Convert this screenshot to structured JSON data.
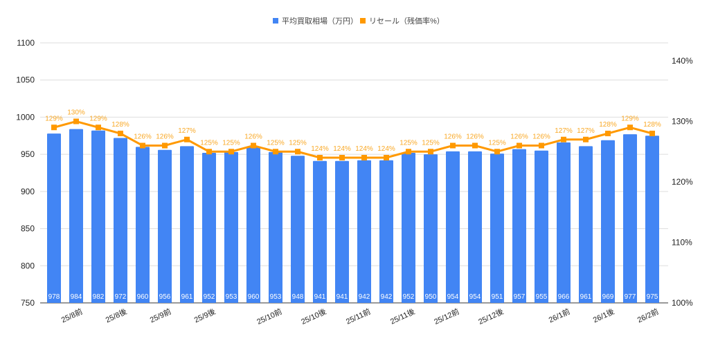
{
  "chart_data": {
    "type": "bar+line",
    "legend_position": "top",
    "grid": true,
    "categories": [
      "",
      "25/8前",
      "",
      "25/8後",
      "",
      "25/9前",
      "",
      "25/9後",
      "",
      "",
      "25/10前",
      "",
      "25/10後",
      "",
      "25/11前",
      "",
      "25/11後",
      "",
      "25/12前",
      "",
      "25/12後",
      "",
      "",
      "26/1前",
      "",
      "26/1後",
      "",
      "26/2前"
    ],
    "series": [
      {
        "name": "平均買取相場（万円）",
        "type": "bar",
        "axis": "left",
        "color": "#4285f4",
        "values": [
          978,
          984,
          982,
          972,
          960,
          956,
          961,
          952,
          953,
          960,
          953,
          948,
          941,
          941,
          942,
          942,
          952,
          950,
          954,
          954,
          951,
          957,
          955,
          966,
          961,
          969,
          977,
          975
        ]
      },
      {
        "name": "リセール（残価率%）",
        "type": "line",
        "axis": "right",
        "color": "#ff9900",
        "values": [
          129,
          130,
          129,
          128,
          126,
          126,
          127,
          125,
          125,
          126,
          125,
          125,
          124,
          124,
          124,
          124,
          125,
          125,
          126,
          126,
          125,
          126,
          126,
          127,
          127,
          128,
          129,
          128
        ]
      }
    ],
    "left_axis": {
      "ylim": [
        750,
        1100
      ],
      "ticks": [
        750,
        800,
        850,
        900,
        950,
        1000,
        1050,
        1100
      ]
    },
    "right_axis": {
      "ylim": [
        100,
        143
      ],
      "ticks": [
        "100%",
        "110%",
        "120%",
        "130%",
        "140%"
      ],
      "tick_values": [
        100,
        110,
        120,
        130,
        140
      ]
    }
  }
}
